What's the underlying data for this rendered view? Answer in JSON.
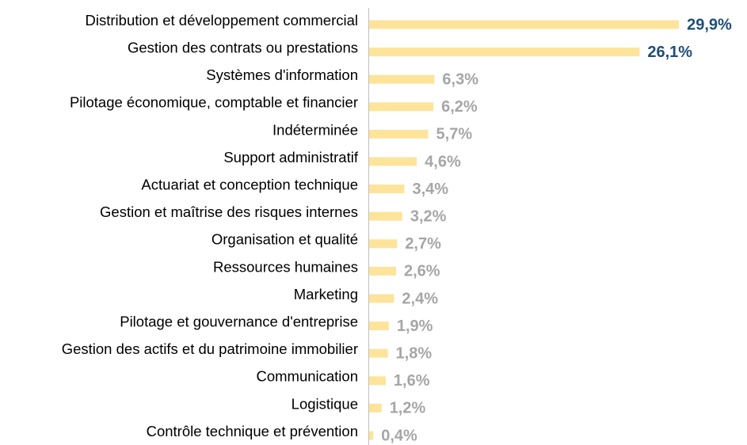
{
  "chart_data": {
    "type": "barh",
    "categories": [
      "Distribution et développement commercial",
      "Gestion des contrats ou prestations",
      "Systèmes d'information",
      "Pilotage économique, comptable et financier",
      "Indéterminée",
      "Support administratif",
      "Actuariat et conception technique",
      "Gestion et maîtrise des risques internes",
      "Organisation et qualité",
      "Ressources humaines",
      "Marketing",
      "Pilotage et gouvernance d'entreprise",
      "Gestion des actifs et du patrimoine immobilier",
      "Communication",
      "Logistique",
      "Contrôle technique et prévention"
    ],
    "values": [
      29.9,
      26.1,
      6.3,
      6.2,
      5.7,
      4.6,
      3.4,
      3.2,
      2.7,
      2.6,
      2.4,
      1.9,
      1.8,
      1.6,
      1.2,
      0.4
    ],
    "value_labels": [
      "29,9%",
      "26,1%",
      "6,3%",
      "6,2%",
      "5,7%",
      "4,6%",
      "3,4%",
      "3,2%",
      "2,7%",
      "2,6%",
      "2,4%",
      "1,9%",
      "1,8%",
      "1,6%",
      "1,2%",
      "0,4%"
    ],
    "color": "#fde49a",
    "value_label_colors": [
      "#1f4e79",
      "#1f4e79",
      "#a6a6a6",
      "#a6a6a6",
      "#a6a6a6",
      "#a6a6a6",
      "#a6a6a6",
      "#a6a6a6",
      "#a6a6a6",
      "#a6a6a6",
      "#a6a6a6",
      "#a6a6a6",
      "#a6a6a6",
      "#a6a6a6",
      "#a6a6a6",
      "#a6a6a6"
    ]
  }
}
